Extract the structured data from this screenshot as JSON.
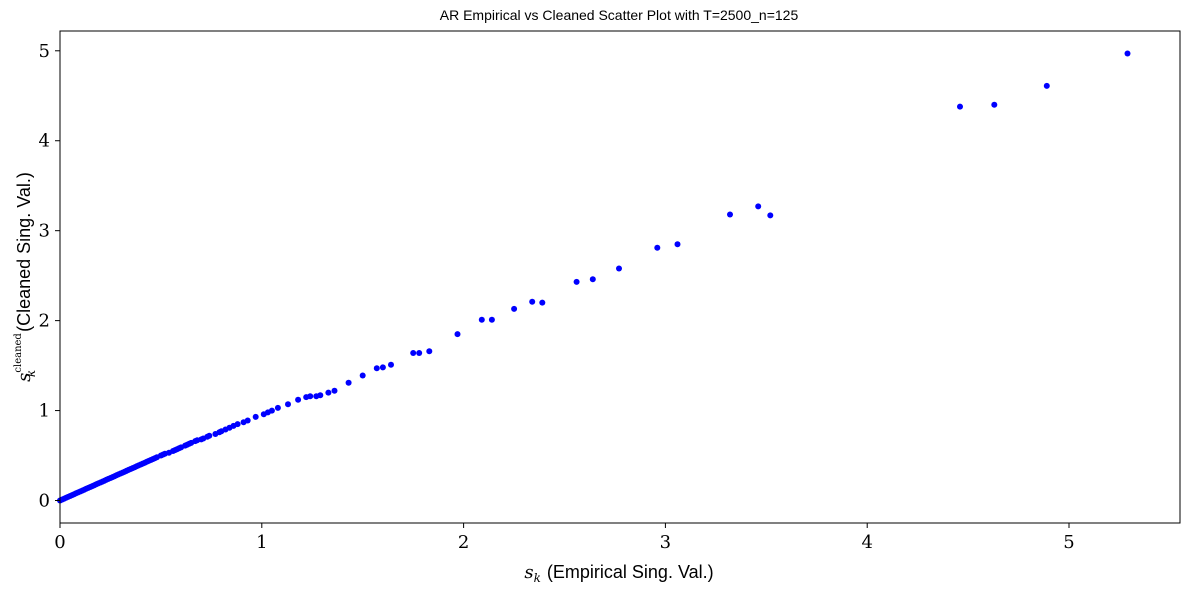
{
  "chart_data": {
    "type": "scatter",
    "title": "AR Empirical vs Cleaned Scatter Plot with T=2500_n=125",
    "xlabel": {
      "symbol": "s",
      "subscript": "k",
      "text": "(Empirical Sing. Val.)"
    },
    "ylabel": {
      "symbol": "s",
      "subscript": "k",
      "superscript": "cleaned",
      "text": "(Cleaned Sing. Val.)"
    },
    "xlim": [
      0,
      5.55
    ],
    "ylim": [
      -0.25,
      5.22
    ],
    "xticks": [
      0,
      1,
      2,
      3,
      4,
      5
    ],
    "xtick_labels": [
      "0",
      "1",
      "2",
      "3",
      "4",
      "5"
    ],
    "yticks": [
      0,
      1,
      2,
      3,
      4,
      5
    ],
    "ytick_labels": [
      "0",
      "1",
      "2",
      "3",
      "4",
      "5"
    ],
    "grid": false,
    "marker_color": "#0000ff",
    "series": [
      {
        "x": [
          0.0,
          0.01,
          0.02,
          0.03,
          0.04,
          0.05,
          0.06,
          0.07,
          0.08,
          0.09,
          0.1,
          0.11,
          0.12,
          0.13,
          0.14,
          0.15,
          0.16,
          0.17,
          0.18,
          0.19,
          0.2,
          0.21,
          0.22,
          0.23,
          0.24,
          0.25,
          0.26,
          0.27,
          0.28,
          0.29,
          0.3,
          0.31,
          0.32,
          0.33,
          0.34,
          0.35,
          0.36,
          0.37,
          0.38,
          0.39,
          0.4,
          0.41,
          0.42,
          0.43,
          0.44,
          0.45,
          0.46,
          0.47,
          0.48,
          0.5,
          0.51,
          0.52,
          0.54,
          0.56,
          0.57,
          0.58,
          0.59,
          0.6,
          0.62,
          0.63,
          0.64,
          0.65,
          0.67,
          0.68,
          0.7,
          0.71,
          0.73,
          0.74,
          0.77,
          0.79,
          0.8,
          0.82,
          0.84,
          0.86,
          0.88,
          0.91,
          0.93,
          0.97,
          1.01,
          1.03,
          1.05,
          1.08,
          1.13,
          1.18,
          1.22,
          1.24,
          1.27,
          1.29,
          1.33,
          1.36,
          1.43,
          1.5,
          1.57,
          1.6,
          1.64,
          1.75,
          1.78,
          1.83,
          1.97,
          2.09,
          2.14,
          2.25,
          2.34,
          2.39,
          2.56,
          2.64,
          2.77,
          2.96,
          3.06,
          3.32,
          3.46,
          3.52,
          4.46,
          4.63,
          4.89,
          5.29
        ],
        "y": [
          0.0,
          0.01,
          0.02,
          0.03,
          0.04,
          0.05,
          0.06,
          0.07,
          0.08,
          0.09,
          0.1,
          0.11,
          0.12,
          0.13,
          0.14,
          0.15,
          0.16,
          0.17,
          0.18,
          0.19,
          0.2,
          0.21,
          0.22,
          0.23,
          0.24,
          0.25,
          0.26,
          0.27,
          0.28,
          0.29,
          0.3,
          0.31,
          0.32,
          0.33,
          0.34,
          0.35,
          0.36,
          0.37,
          0.38,
          0.39,
          0.4,
          0.41,
          0.42,
          0.43,
          0.44,
          0.45,
          0.46,
          0.47,
          0.48,
          0.5,
          0.51,
          0.52,
          0.53,
          0.55,
          0.56,
          0.57,
          0.58,
          0.59,
          0.61,
          0.62,
          0.63,
          0.64,
          0.66,
          0.67,
          0.68,
          0.69,
          0.71,
          0.72,
          0.74,
          0.76,
          0.77,
          0.79,
          0.81,
          0.83,
          0.85,
          0.87,
          0.89,
          0.93,
          0.96,
          0.98,
          1.0,
          1.03,
          1.07,
          1.12,
          1.15,
          1.16,
          1.16,
          1.17,
          1.2,
          1.22,
          1.31,
          1.39,
          1.47,
          1.48,
          1.51,
          1.64,
          1.64,
          1.66,
          1.85,
          2.01,
          2.01,
          2.13,
          2.21,
          2.2,
          2.43,
          2.46,
          2.58,
          2.81,
          2.85,
          3.18,
          3.27,
          3.17,
          4.38,
          4.4,
          4.61,
          4.97
        ]
      }
    ]
  }
}
